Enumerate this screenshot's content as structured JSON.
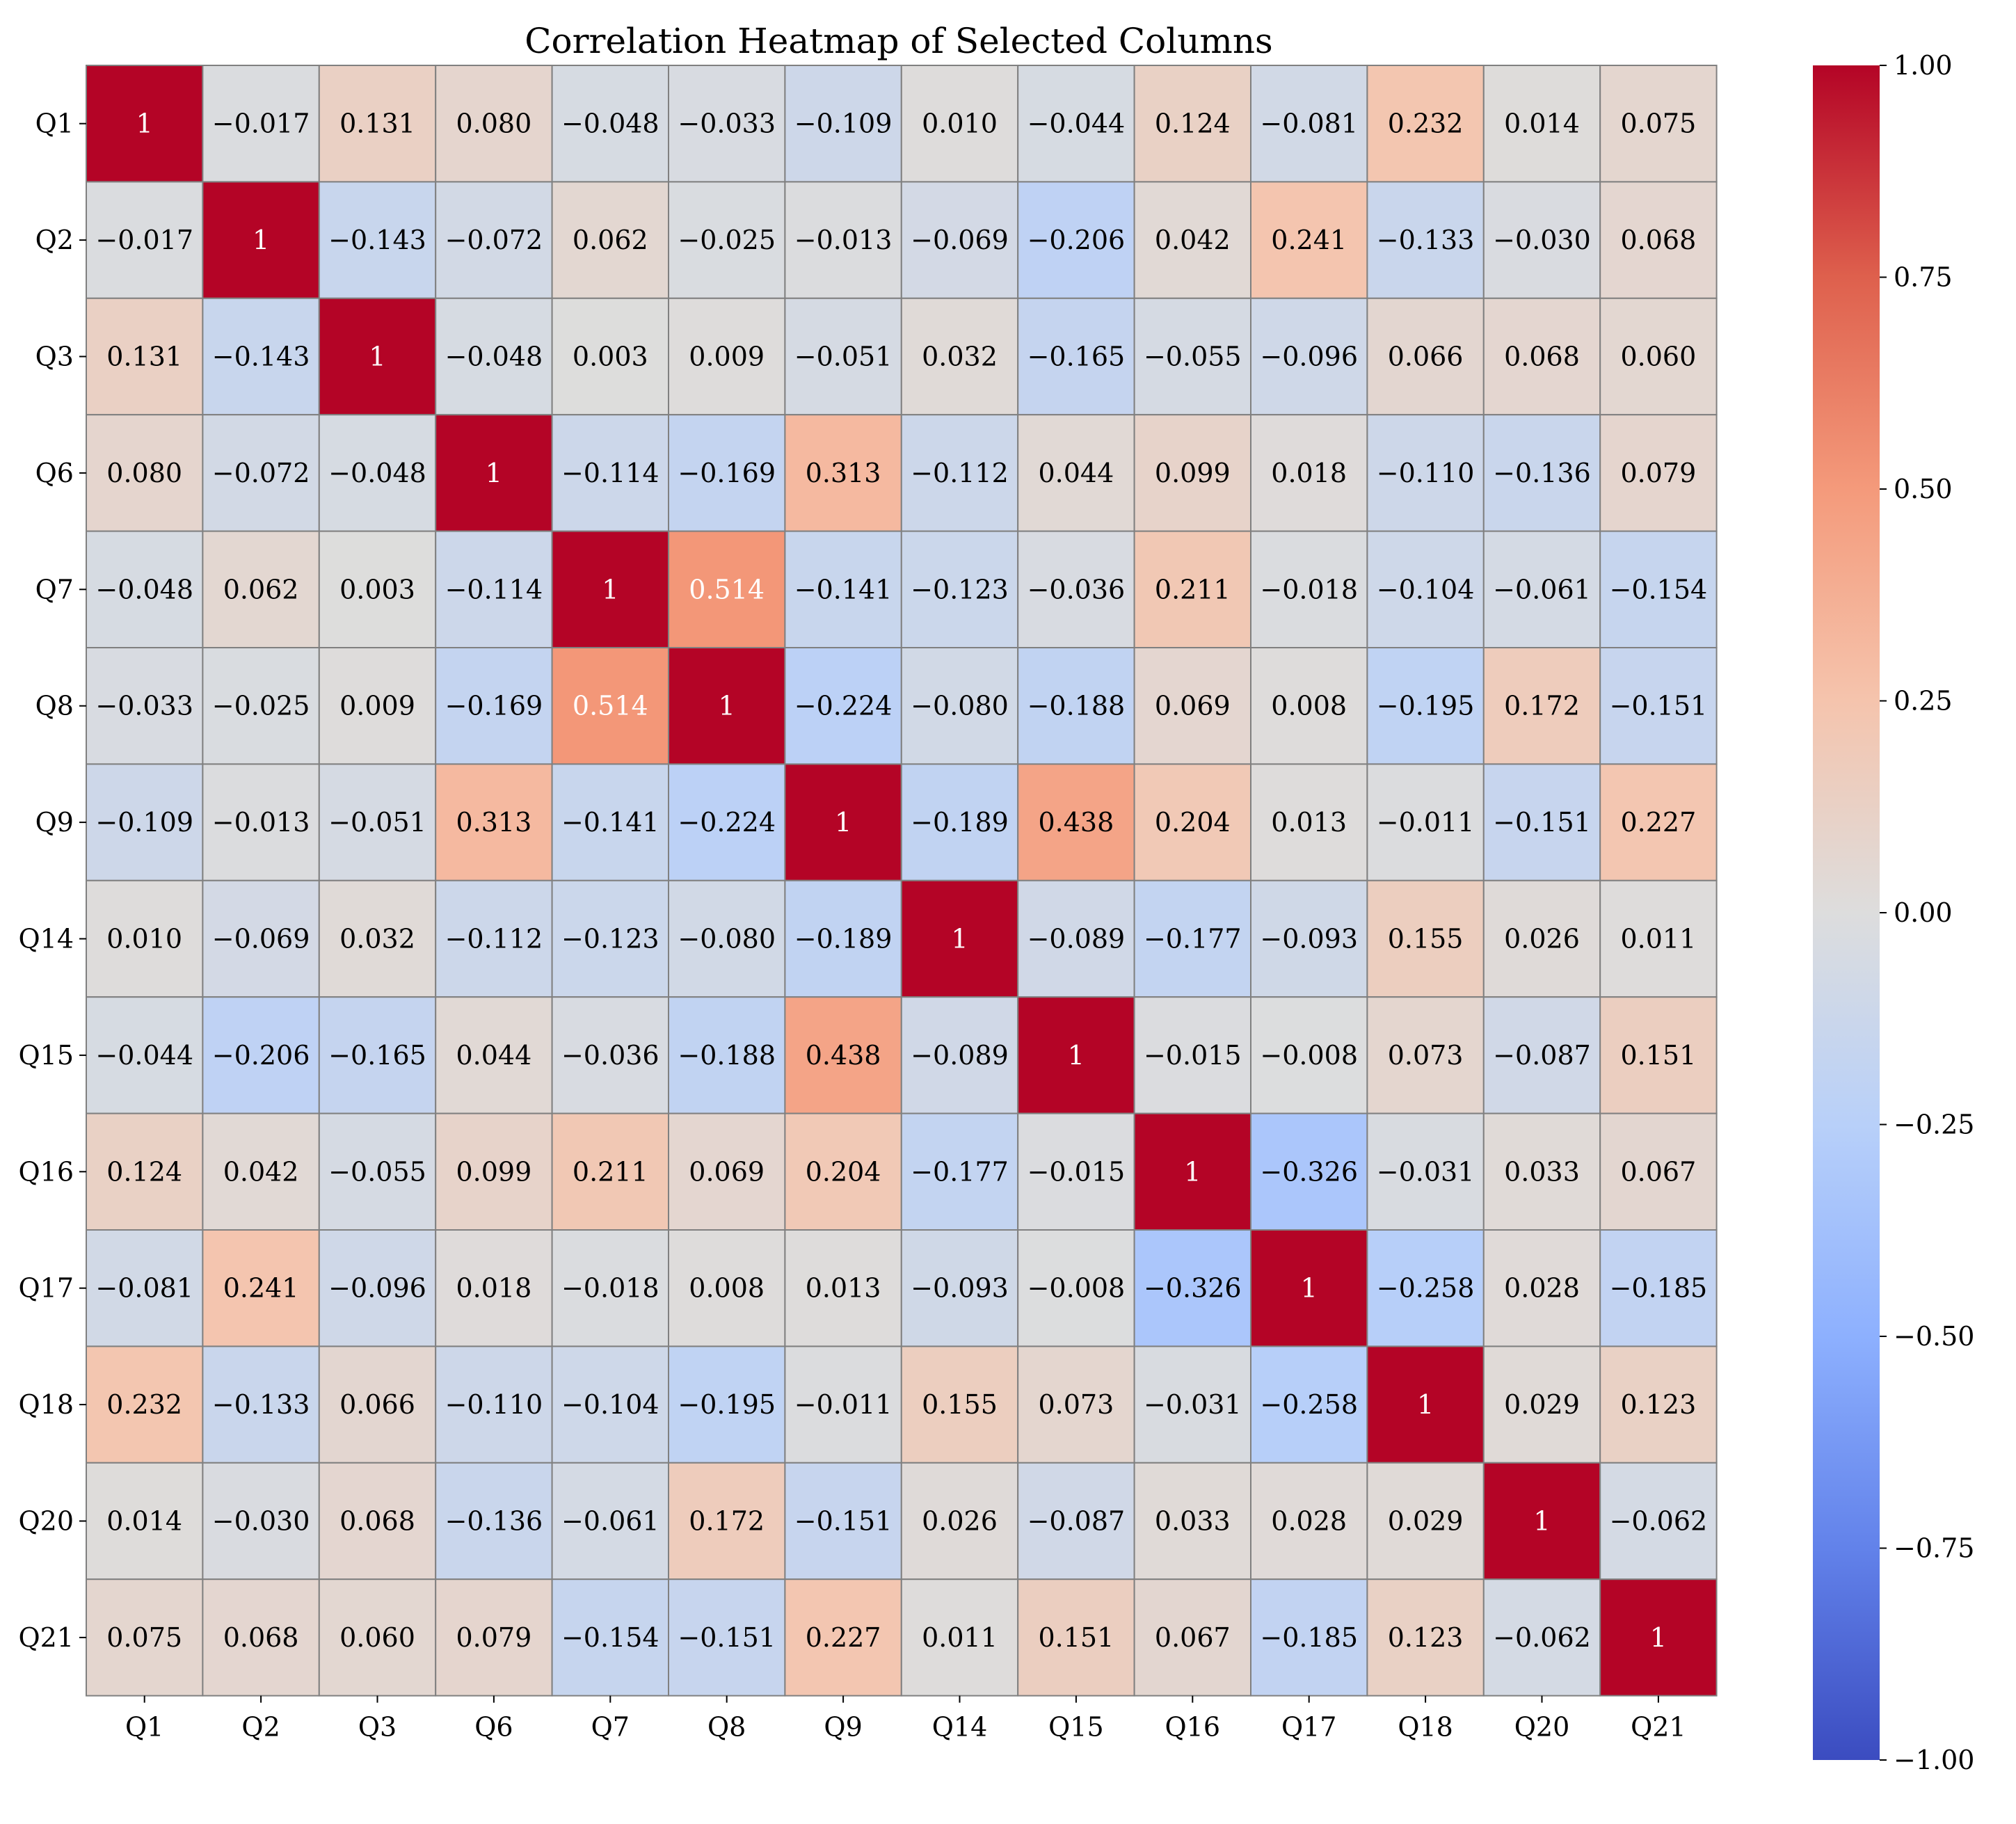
{
  "chart_data": {
    "type": "heatmap",
    "title": "Correlation Heatmap of Selected Columns",
    "labels": [
      "Q1",
      "Q2",
      "Q3",
      "Q6",
      "Q7",
      "Q8",
      "Q9",
      "Q14",
      "Q15",
      "Q16",
      "Q17",
      "Q18",
      "Q20",
      "Q21"
    ],
    "matrix": [
      [
        1,
        -0.017,
        0.131,
        0.08,
        -0.048,
        -0.033,
        -0.109,
        0.01,
        -0.044,
        0.124,
        -0.081,
        0.232,
        0.014,
        0.075
      ],
      [
        -0.017,
        1,
        -0.143,
        -0.072,
        0.062,
        -0.025,
        -0.013,
        -0.069,
        -0.206,
        0.042,
        0.241,
        -0.133,
        -0.03,
        0.068
      ],
      [
        0.131,
        -0.143,
        1,
        -0.048,
        0.003,
        0.009,
        -0.051,
        0.032,
        -0.165,
        -0.055,
        -0.096,
        0.066,
        0.068,
        0.06
      ],
      [
        0.08,
        -0.072,
        -0.048,
        1,
        -0.114,
        -0.169,
        0.313,
        -0.112,
        0.044,
        0.099,
        0.018,
        -0.11,
        -0.136,
        0.079
      ],
      [
        -0.048,
        0.062,
        0.003,
        -0.114,
        1,
        0.514,
        -0.141,
        -0.123,
        -0.036,
        0.211,
        -0.018,
        -0.104,
        -0.061,
        -0.154
      ],
      [
        -0.033,
        -0.025,
        0.009,
        -0.169,
        0.514,
        1,
        -0.224,
        -0.08,
        -0.188,
        0.069,
        0.008,
        -0.195,
        0.172,
        -0.151
      ],
      [
        -0.109,
        -0.013,
        -0.051,
        0.313,
        -0.141,
        -0.224,
        1,
        -0.189,
        0.438,
        0.204,
        0.013,
        -0.011,
        -0.151,
        0.227
      ],
      [
        0.01,
        -0.069,
        0.032,
        -0.112,
        -0.123,
        -0.08,
        -0.189,
        1,
        -0.089,
        -0.177,
        -0.093,
        0.155,
        0.026,
        0.011
      ],
      [
        -0.044,
        -0.206,
        -0.165,
        0.044,
        -0.036,
        -0.188,
        0.438,
        -0.089,
        1,
        -0.015,
        -0.008,
        0.073,
        -0.087,
        0.151
      ],
      [
        0.124,
        0.042,
        -0.055,
        0.099,
        0.211,
        0.069,
        0.204,
        -0.177,
        -0.015,
        1,
        -0.326,
        -0.031,
        0.033,
        0.067
      ],
      [
        -0.081,
        0.241,
        -0.096,
        0.018,
        -0.018,
        0.008,
        0.013,
        -0.093,
        -0.008,
        -0.326,
        1,
        -0.258,
        0.028,
        -0.185
      ],
      [
        0.232,
        -0.133,
        0.066,
        -0.11,
        -0.104,
        -0.195,
        -0.011,
        0.155,
        0.073,
        -0.031,
        -0.258,
        1,
        0.029,
        0.123
      ],
      [
        0.014,
        -0.03,
        0.068,
        -0.136,
        -0.061,
        0.172,
        -0.151,
        0.026,
        -0.087,
        0.033,
        0.028,
        0.029,
        1,
        -0.062
      ],
      [
        0.075,
        0.068,
        0.06,
        0.079,
        -0.154,
        -0.151,
        0.227,
        0.011,
        0.151,
        0.067,
        -0.185,
        0.123,
        -0.062,
        1
      ]
    ],
    "colormap": "coolwarm",
    "vmin": -1,
    "vmax": 1,
    "colorbar_ticks": [
      1.0,
      0.75,
      0.5,
      0.25,
      0.0,
      -0.25,
      -0.5,
      -0.75,
      -1.0
    ],
    "colorbar_tick_labels": [
      "1.00",
      "0.75",
      "0.50",
      "0.25",
      "0.00",
      "−0.25",
      "−0.50",
      "−0.75",
      "−1.00"
    ],
    "colors": {
      "low": "#3b4cc0",
      "mid": "#dddddd",
      "high": "#b40426",
      "grid": "#808080"
    }
  }
}
